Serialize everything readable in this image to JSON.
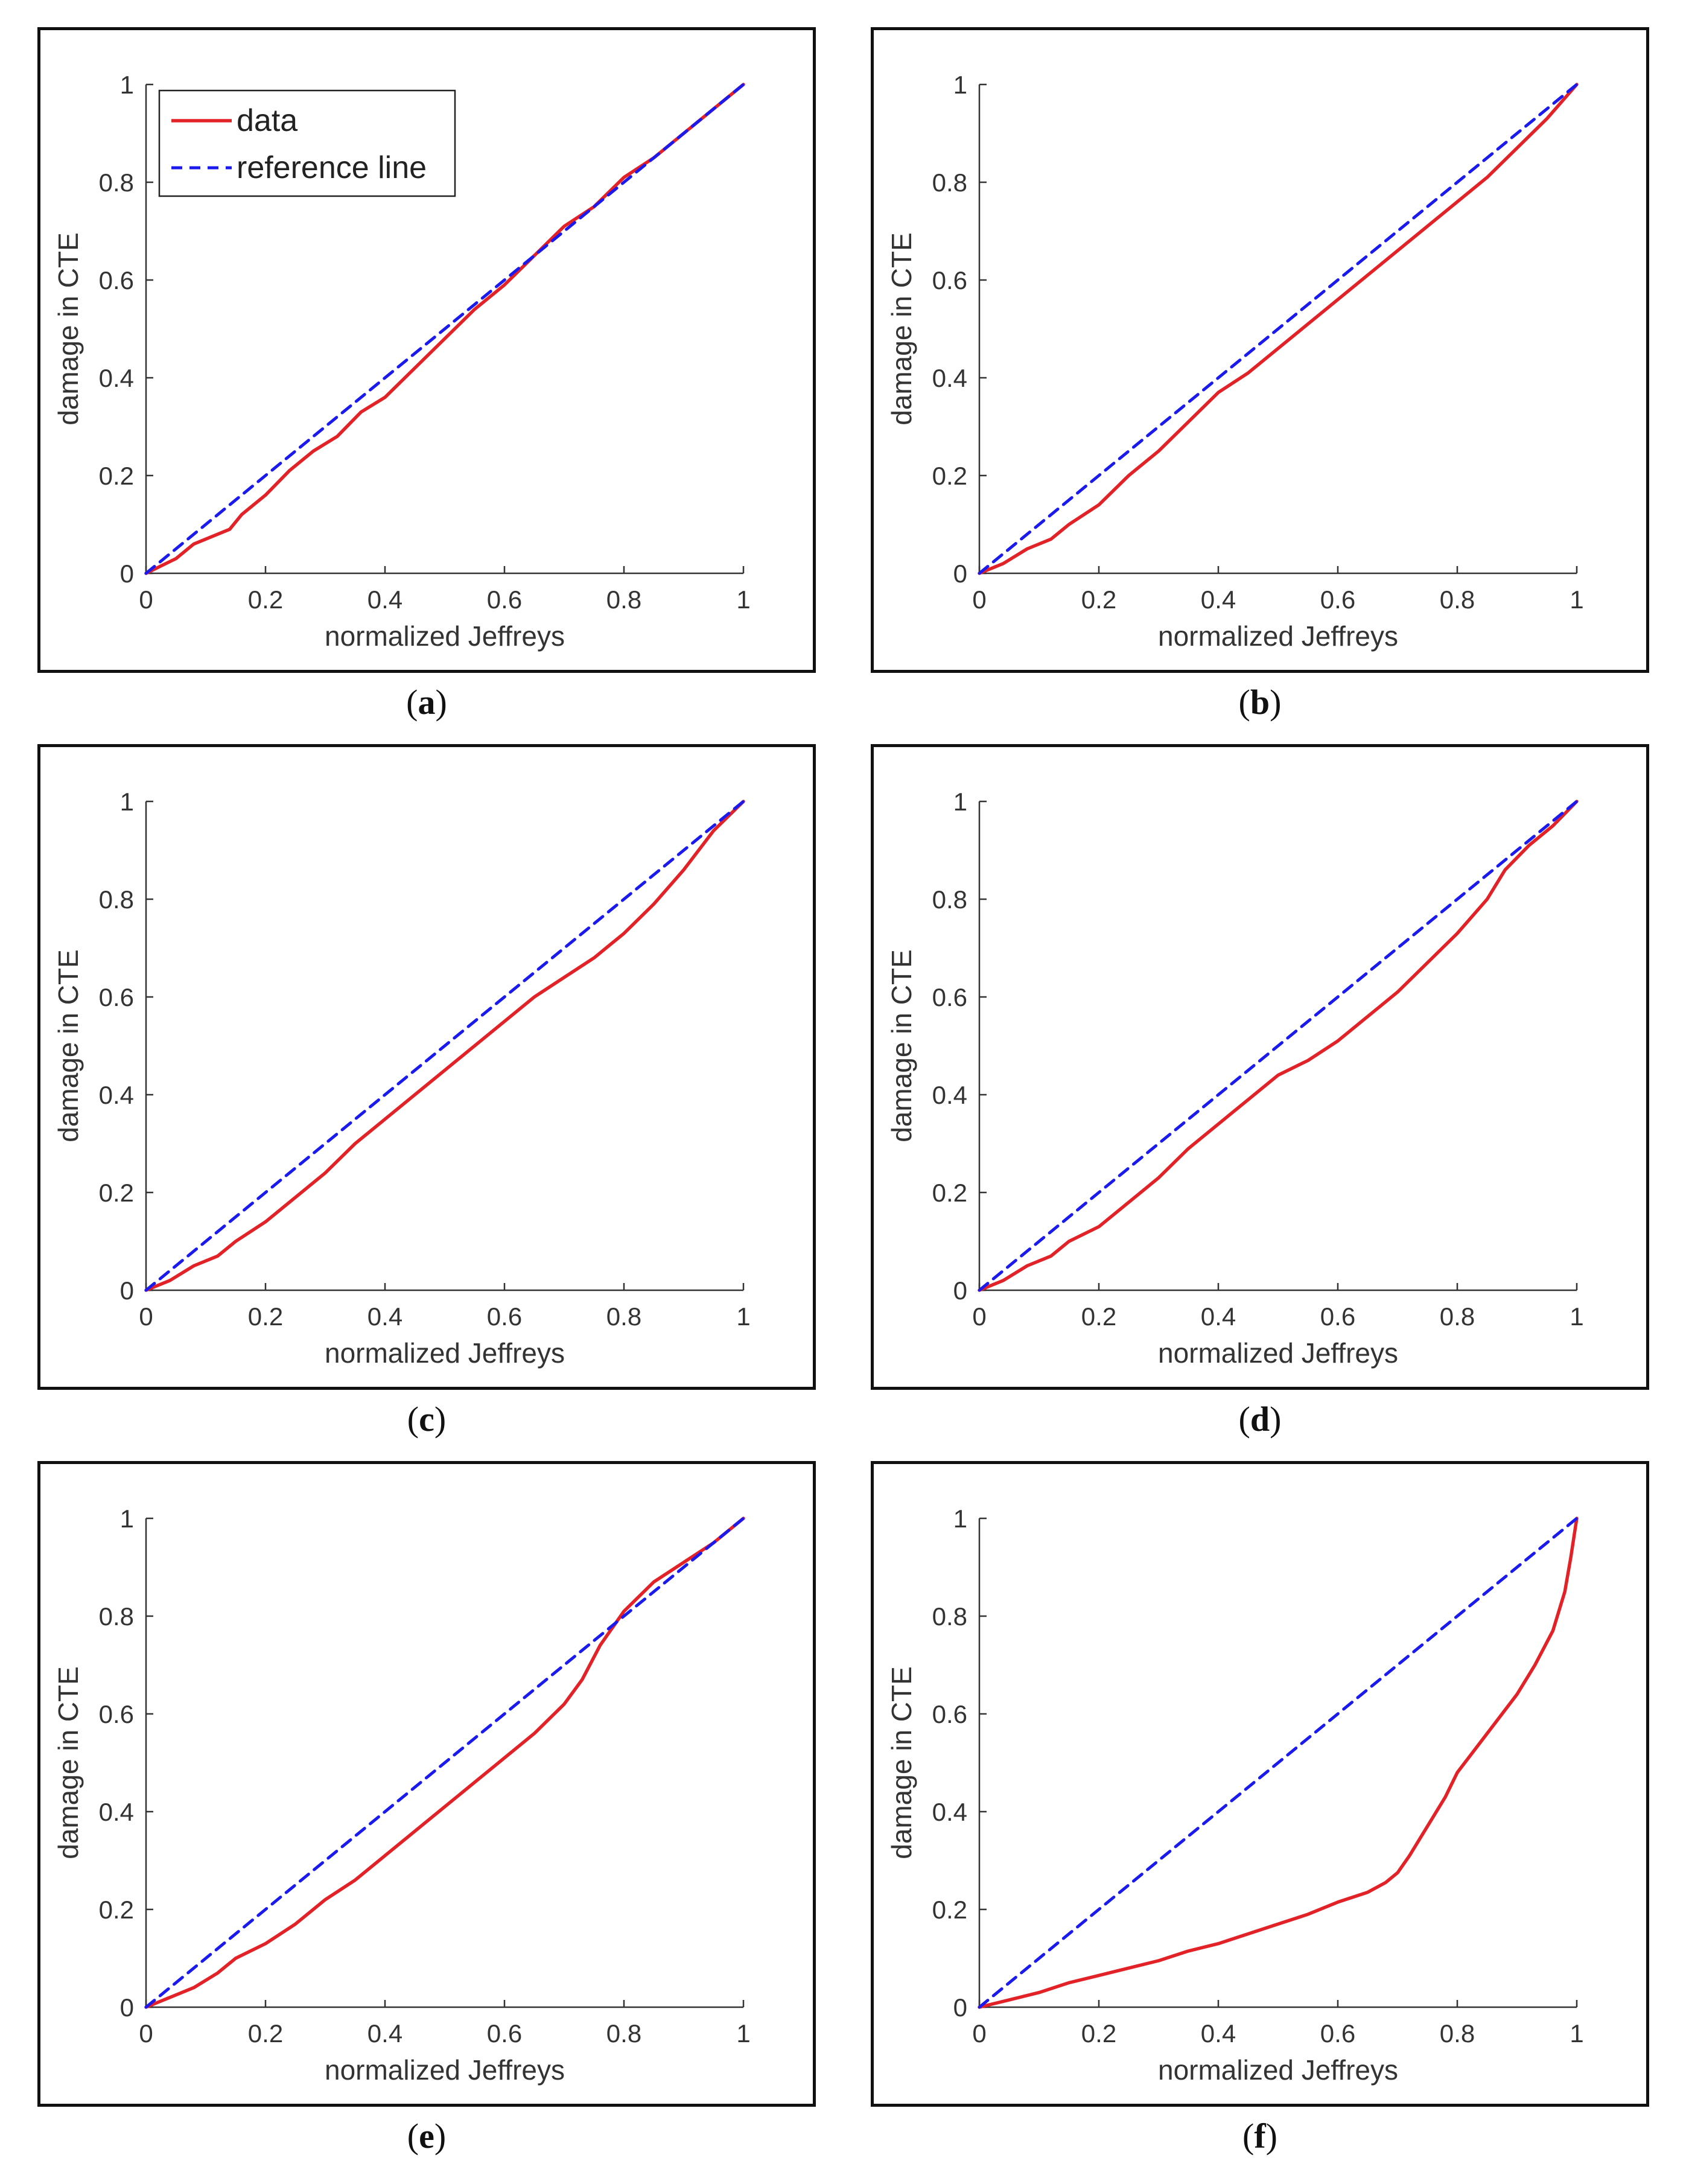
{
  "colors": {
    "data_line": "#e32227",
    "reference_line": "#1a1aee",
    "axis": "#333333",
    "frame": "#111111"
  },
  "legend": {
    "data_label": "data",
    "reference_label": "reference line"
  },
  "chart_data": [
    {
      "id": "a",
      "caption_open": "(",
      "caption_letter": "a",
      "caption_close": ")",
      "type": "line",
      "xlabel": "normalized Jeffreys",
      "ylabel": "damage in CTE",
      "xlim": [
        0,
        1
      ],
      "ylim": [
        0,
        1
      ],
      "xticks": [
        "0",
        "0.2",
        "0.4",
        "0.6",
        "0.8",
        "1"
      ],
      "yticks": [
        "0",
        "0.2",
        "0.4",
        "0.6",
        "0.8",
        "1"
      ],
      "show_legend": true,
      "series": [
        {
          "name": "data",
          "x": [
            0,
            0.05,
            0.08,
            0.1,
            0.14,
            0.16,
            0.2,
            0.24,
            0.28,
            0.32,
            0.36,
            0.4,
            0.45,
            0.5,
            0.55,
            0.6,
            0.65,
            0.7,
            0.75,
            0.8,
            0.85,
            0.9,
            0.95,
            1
          ],
          "y": [
            0,
            0.03,
            0.06,
            0.07,
            0.09,
            0.12,
            0.16,
            0.21,
            0.25,
            0.28,
            0.33,
            0.36,
            0.42,
            0.48,
            0.54,
            0.59,
            0.65,
            0.71,
            0.75,
            0.81,
            0.85,
            0.9,
            0.95,
            1
          ]
        },
        {
          "name": "reference line",
          "x": [
            0,
            1
          ],
          "y": [
            0,
            1
          ]
        }
      ]
    },
    {
      "id": "b",
      "caption_open": "(",
      "caption_letter": "b",
      "caption_close": ")",
      "type": "line",
      "xlabel": "normalized Jeffreys",
      "ylabel": "damage in CTE",
      "xlim": [
        0,
        1
      ],
      "ylim": [
        0,
        1
      ],
      "xticks": [
        "0",
        "0.2",
        "0.4",
        "0.6",
        "0.8",
        "1"
      ],
      "yticks": [
        "0",
        "0.2",
        "0.4",
        "0.6",
        "0.8",
        "1"
      ],
      "show_legend": false,
      "series": [
        {
          "name": "data",
          "x": [
            0,
            0.04,
            0.08,
            0.12,
            0.15,
            0.2,
            0.25,
            0.3,
            0.35,
            0.4,
            0.45,
            0.5,
            0.55,
            0.6,
            0.65,
            0.7,
            0.75,
            0.8,
            0.85,
            0.9,
            0.95,
            1
          ],
          "y": [
            0,
            0.02,
            0.05,
            0.07,
            0.1,
            0.14,
            0.2,
            0.25,
            0.31,
            0.37,
            0.41,
            0.46,
            0.51,
            0.56,
            0.61,
            0.66,
            0.71,
            0.76,
            0.81,
            0.87,
            0.93,
            1
          ]
        },
        {
          "name": "reference line",
          "x": [
            0,
            1
          ],
          "y": [
            0,
            1
          ]
        }
      ]
    },
    {
      "id": "c",
      "caption_open": "(",
      "caption_letter": "c",
      "caption_close": ")",
      "type": "line",
      "xlabel": "normalized Jeffreys",
      "ylabel": "damage in CTE",
      "xlim": [
        0,
        1
      ],
      "ylim": [
        0,
        1
      ],
      "xticks": [
        "0",
        "0.2",
        "0.4",
        "0.6",
        "0.8",
        "1"
      ],
      "yticks": [
        "0",
        "0.2",
        "0.4",
        "0.6",
        "0.8",
        "1"
      ],
      "show_legend": false,
      "series": [
        {
          "name": "data",
          "x": [
            0,
            0.04,
            0.08,
            0.12,
            0.15,
            0.2,
            0.25,
            0.3,
            0.35,
            0.4,
            0.45,
            0.5,
            0.55,
            0.6,
            0.65,
            0.7,
            0.75,
            0.8,
            0.85,
            0.9,
            0.95,
            1
          ],
          "y": [
            0,
            0.02,
            0.05,
            0.07,
            0.1,
            0.14,
            0.19,
            0.24,
            0.3,
            0.35,
            0.4,
            0.45,
            0.5,
            0.55,
            0.6,
            0.64,
            0.68,
            0.73,
            0.79,
            0.86,
            0.94,
            1
          ]
        },
        {
          "name": "reference line",
          "x": [
            0,
            1
          ],
          "y": [
            0,
            1
          ]
        }
      ]
    },
    {
      "id": "d",
      "caption_open": "(",
      "caption_letter": "d",
      "caption_close": ")",
      "type": "line",
      "xlabel": "normalized Jeffreys",
      "ylabel": "damage in CTE",
      "xlim": [
        0,
        1
      ],
      "ylim": [
        0,
        1
      ],
      "xticks": [
        "0",
        "0.2",
        "0.4",
        "0.6",
        "0.8",
        "1"
      ],
      "yticks": [
        "0",
        "0.2",
        "0.4",
        "0.6",
        "0.8",
        "1"
      ],
      "show_legend": false,
      "series": [
        {
          "name": "data",
          "x": [
            0,
            0.04,
            0.08,
            0.12,
            0.15,
            0.2,
            0.25,
            0.3,
            0.35,
            0.4,
            0.45,
            0.5,
            0.55,
            0.6,
            0.65,
            0.7,
            0.75,
            0.8,
            0.85,
            0.88,
            0.92,
            0.96,
            1
          ],
          "y": [
            0,
            0.02,
            0.05,
            0.07,
            0.1,
            0.13,
            0.18,
            0.23,
            0.29,
            0.34,
            0.39,
            0.44,
            0.47,
            0.51,
            0.56,
            0.61,
            0.67,
            0.73,
            0.8,
            0.86,
            0.91,
            0.95,
            1
          ]
        },
        {
          "name": "reference line",
          "x": [
            0,
            1
          ],
          "y": [
            0,
            1
          ]
        }
      ]
    },
    {
      "id": "e",
      "caption_open": "(",
      "caption_letter": "e",
      "caption_close": ")",
      "type": "line",
      "xlabel": "normalized Jeffreys",
      "ylabel": "damage in CTE",
      "xlim": [
        0,
        1
      ],
      "ylim": [
        0,
        1
      ],
      "xticks": [
        "0",
        "0.2",
        "0.4",
        "0.6",
        "0.8",
        "1"
      ],
      "yticks": [
        "0",
        "0.2",
        "0.4",
        "0.6",
        "0.8",
        "1"
      ],
      "show_legend": false,
      "series": [
        {
          "name": "data",
          "x": [
            0,
            0.04,
            0.08,
            0.12,
            0.15,
            0.2,
            0.25,
            0.3,
            0.35,
            0.4,
            0.45,
            0.5,
            0.55,
            0.6,
            0.65,
            0.7,
            0.73,
            0.76,
            0.8,
            0.85,
            0.9,
            0.95,
            1
          ],
          "y": [
            0,
            0.02,
            0.04,
            0.07,
            0.1,
            0.13,
            0.17,
            0.22,
            0.26,
            0.31,
            0.36,
            0.41,
            0.46,
            0.51,
            0.56,
            0.62,
            0.67,
            0.74,
            0.81,
            0.87,
            0.91,
            0.95,
            1
          ]
        },
        {
          "name": "reference line",
          "x": [
            0,
            1
          ],
          "y": [
            0,
            1
          ]
        }
      ]
    },
    {
      "id": "f",
      "caption_open": "(",
      "caption_letter": "f",
      "caption_close": ")",
      "type": "line",
      "xlabel": "normalized Jeffreys",
      "ylabel": "damage in CTE",
      "xlim": [
        0,
        1
      ],
      "ylim": [
        0,
        1
      ],
      "xticks": [
        "0",
        "0.2",
        "0.4",
        "0.6",
        "0.8",
        "1"
      ],
      "yticks": [
        "0",
        "0.2",
        "0.4",
        "0.6",
        "0.8",
        "1"
      ],
      "show_legend": false,
      "series": [
        {
          "name": "data",
          "x": [
            0,
            0.05,
            0.1,
            0.15,
            0.2,
            0.25,
            0.3,
            0.35,
            0.4,
            0.45,
            0.5,
            0.55,
            0.6,
            0.65,
            0.68,
            0.7,
            0.72,
            0.75,
            0.78,
            0.8,
            0.85,
            0.9,
            0.93,
            0.96,
            0.98,
            0.99,
            1
          ],
          "y": [
            0,
            0.015,
            0.03,
            0.05,
            0.065,
            0.08,
            0.095,
            0.115,
            0.13,
            0.15,
            0.17,
            0.19,
            0.215,
            0.235,
            0.255,
            0.275,
            0.31,
            0.37,
            0.43,
            0.48,
            0.56,
            0.64,
            0.7,
            0.77,
            0.85,
            0.92,
            1
          ]
        },
        {
          "name": "reference line",
          "x": [
            0,
            1
          ],
          "y": [
            0,
            1
          ]
        }
      ]
    }
  ]
}
